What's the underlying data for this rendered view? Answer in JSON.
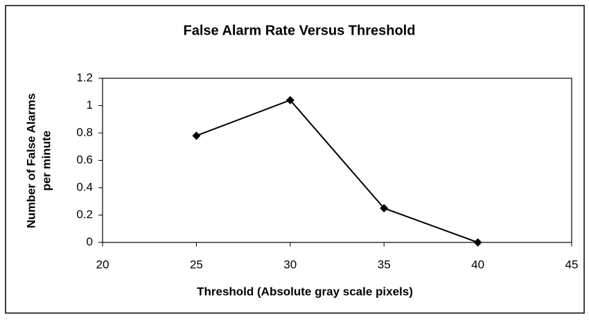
{
  "chart_data": {
    "type": "line",
    "title": "False Alarm Rate Versus Threshold",
    "xlabel": "Threshold (Absolute gray scale pixels)",
    "ylabel": [
      "Number of False Alarms",
      "per minute"
    ],
    "x": [
      25,
      30,
      35,
      40
    ],
    "values": [
      0.78,
      1.04,
      0.25,
      0
    ],
    "color": "#000000",
    "marker": "diamond",
    "xlim": [
      20,
      45
    ],
    "xticks": [
      20,
      25,
      30,
      35,
      40,
      45
    ],
    "ylim": [
      0,
      1.2
    ],
    "yticks": [
      0,
      0.2,
      0.4,
      0.6,
      0.8,
      1,
      1.2
    ],
    "grid": false
  }
}
